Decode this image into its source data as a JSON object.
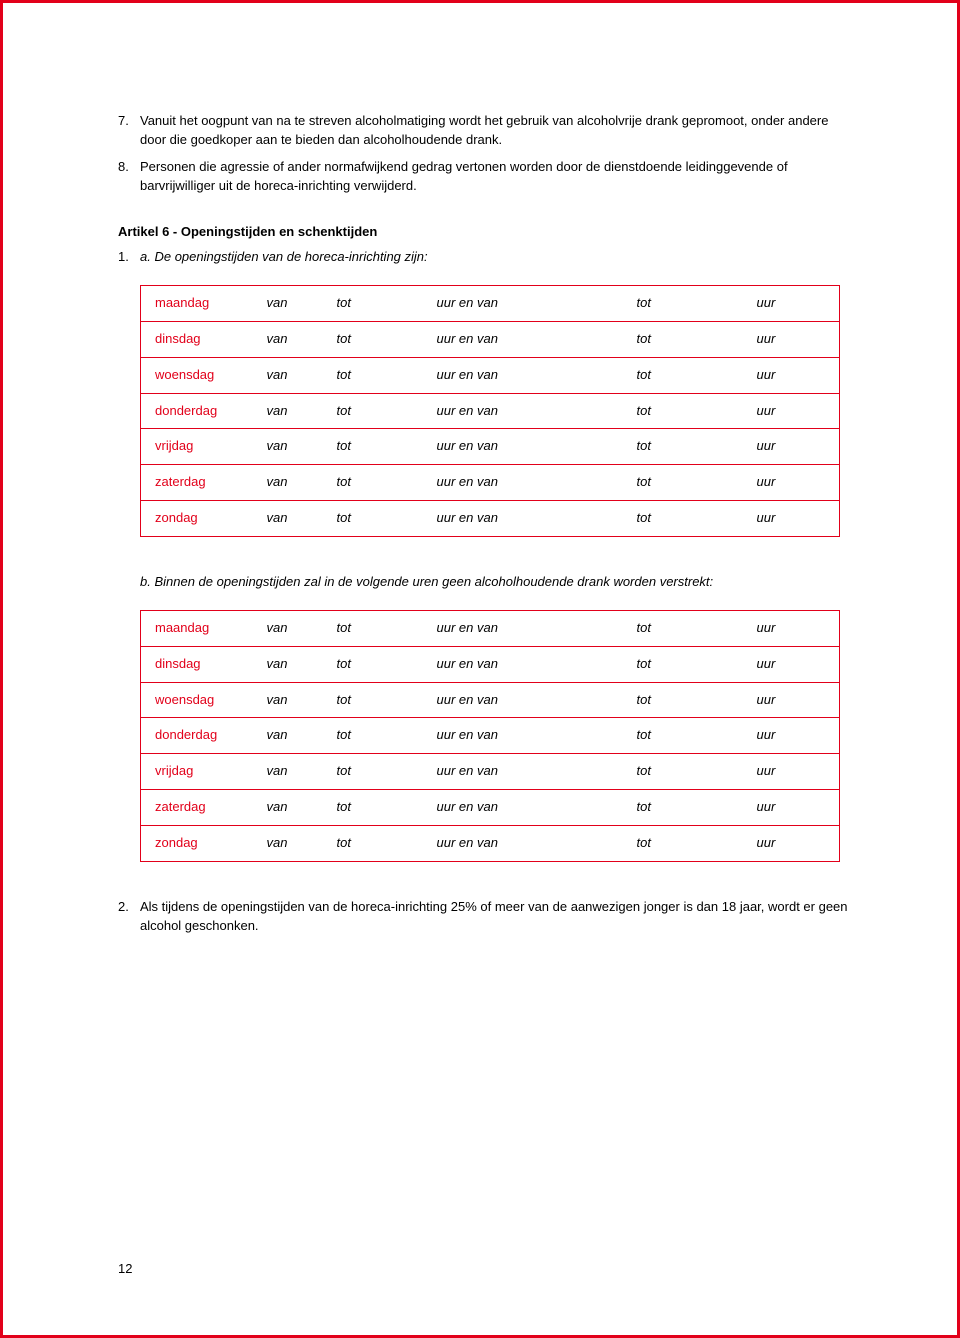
{
  "border_color": "#e2001a",
  "text_color": "#000000",
  "font_family": "Arial, Helvetica, sans-serif",
  "font_size_pt": 10,
  "list7": {
    "num": "7.",
    "text": "Vanuit het oogpunt van na te streven alcoholmatiging wordt het gebruik van alcoholvrije drank gepromoot, onder andere door die goedkoper aan te bieden dan alcoholhoudende drank."
  },
  "list8": {
    "num": "8.",
    "text": "Personen die agressie of ander normafwijkend gedrag vertonen worden door de dienstdoende leidinggevende of barvrijwilliger uit de horeca-inrichting verwijderd."
  },
  "heading": "Artikel 6 - Openingstijden en schenktijden",
  "intro_num": "1.",
  "intro_a_label": "a.",
  "intro_a_text": "De openingstijden van de horeca-inrichting zijn:",
  "table_cols": {
    "van": "van",
    "tot": "tot",
    "mid_prefix": "uur en ",
    "mid_van": "van",
    "tot2": "tot",
    "uur": "uur"
  },
  "days": [
    "maandag",
    "dinsdag",
    "woensdag",
    "donderdag",
    "vrijdag",
    "zaterdag",
    "zondag"
  ],
  "intro_b_label": "b.",
  "intro_b_text": "Binnen de openingstijden zal in de volgende uren geen alcoholhoudende drank worden verstrekt:",
  "item2": {
    "num": "2.",
    "text": "Als tijdens de openingstijden van de horeca-inrichting 25% of meer van de aanwezigen jonger is dan 18 jaar, wordt er geen alcohol geschonken."
  },
  "page_number": "12"
}
